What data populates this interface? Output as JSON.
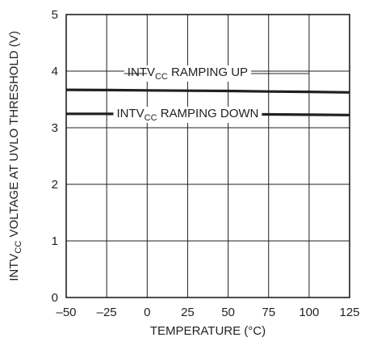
{
  "chart_data": {
    "type": "line",
    "title": "",
    "xlabel": "TEMPERATURE (°C)",
    "ylabel": {
      "prefix": "INTV",
      "sub": "CC",
      "suffix": " VOLTAGE AT UVLO THRESHOLD (V)"
    },
    "xlim": [
      -50,
      125
    ],
    "ylim": [
      0,
      5
    ],
    "x_ticks": [
      -50,
      -25,
      0,
      25,
      50,
      75,
      100,
      125
    ],
    "x_tick_labels": [
      "–50",
      "–25",
      "0",
      "25",
      "50",
      "75",
      "100",
      "125"
    ],
    "y_ticks": [
      0,
      1,
      2,
      3,
      4,
      5
    ],
    "y_tick_labels": [
      "0",
      "1",
      "2",
      "3",
      "4",
      "5"
    ],
    "grid": true,
    "line_color": "#231f20",
    "series": [
      {
        "x": [
          -50,
          -25,
          0,
          25,
          50,
          75,
          100,
          125
        ],
        "y": [
          3.67,
          3.665,
          3.66,
          3.655,
          3.65,
          3.64,
          3.635,
          3.625
        ],
        "label": {
          "prefix": "INTV",
          "sub": "CC",
          "suffix": " RAMPING UP"
        }
      },
      {
        "x": [
          -50,
          -25,
          0,
          25,
          50,
          75,
          100,
          125
        ],
        "y": [
          3.245,
          3.245,
          3.245,
          3.24,
          3.24,
          3.235,
          3.23,
          3.225
        ],
        "label": {
          "prefix": "INTV",
          "sub": "CC",
          "suffix": " RAMPING DOWN"
        }
      }
    ]
  }
}
